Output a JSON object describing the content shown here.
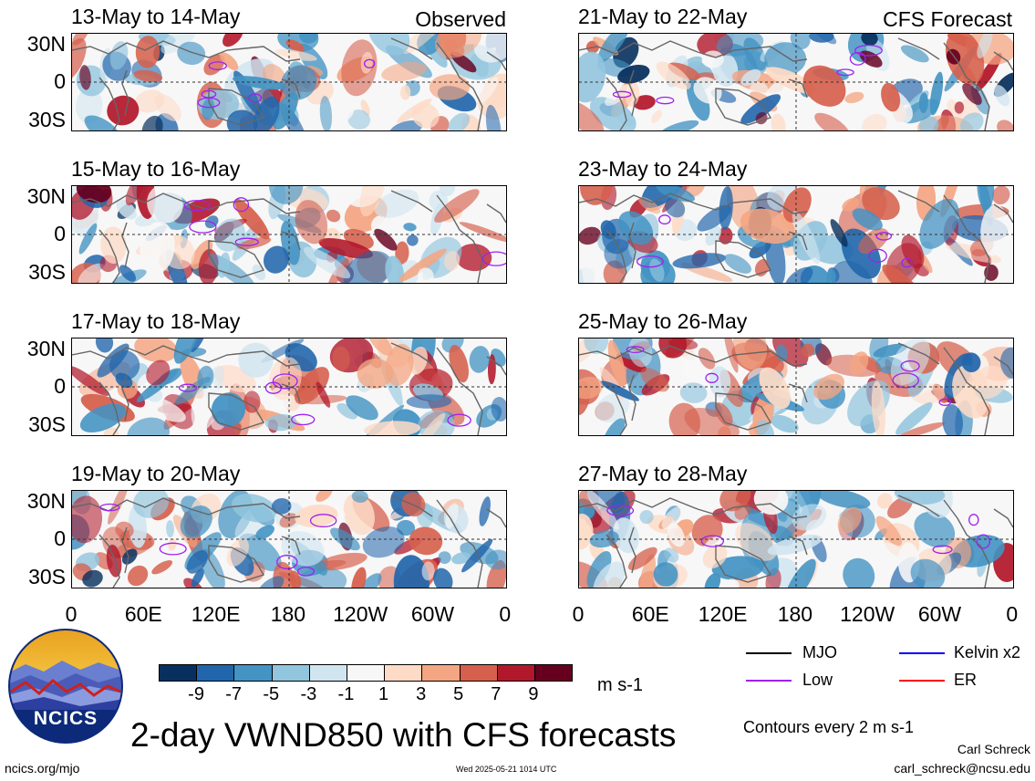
{
  "headers": {
    "left": "Observed",
    "right": "CFS Forecast"
  },
  "panels_left": [
    {
      "title": "13-May to 14-May"
    },
    {
      "title": "15-May to 16-May"
    },
    {
      "title": "17-May to 18-May"
    },
    {
      "title": "19-May to 20-May"
    }
  ],
  "panels_right": [
    {
      "title": "21-May to 22-May"
    },
    {
      "title": "23-May to 24-May"
    },
    {
      "title": "25-May to 26-May"
    },
    {
      "title": "27-May to 28-May"
    }
  ],
  "lat_labels": [
    "30N",
    "0",
    "30S"
  ],
  "lon_labels": [
    "0",
    "60E",
    "120E",
    "180",
    "120W",
    "60W",
    "0"
  ],
  "colorbar": {
    "labels": [
      "-9",
      "-7",
      "-5",
      "-3",
      "-1",
      "1",
      "3",
      "5",
      "7",
      "9"
    ],
    "colors": [
      "#08305e",
      "#2166ac",
      "#4393c3",
      "#92c5de",
      "#d1e5f0",
      "#f7f7f7",
      "#fddbc7",
      "#f4a582",
      "#d6604d",
      "#b2182b",
      "#67001f"
    ],
    "units": "m s-1"
  },
  "legend": {
    "items": [
      {
        "label": "MJO",
        "color": "#000000"
      },
      {
        "label": "Kelvin x2",
        "color": "#0000ff"
      },
      {
        "label": "Low",
        "color": "#a020f0"
      },
      {
        "label": "ER",
        "color": "#ff0000"
      }
    ],
    "contour_note": "Contours every 2 m s-1"
  },
  "logo": {
    "text": "NCICS"
  },
  "main_title": "2-day VWND850 with CFS forecasts",
  "footer": {
    "url": "ncics.org/mjo",
    "timestamp": "Wed 2025-05-21 1014 UTC",
    "author": "Carl Schreck",
    "email": "carl_schreck@ncsu.edu"
  },
  "chart_data": {
    "type": "heatmap",
    "variable": "VWND850",
    "units": "m s-1",
    "x_ticks": [
      "0",
      "60E",
      "120E",
      "180",
      "120W",
      "60W",
      "0"
    ],
    "y_ticks": [
      "30N",
      "0",
      "30S"
    ],
    "color_levels": [
      -9,
      -7,
      -5,
      -3,
      -1,
      1,
      3,
      5,
      7,
      9
    ],
    "panels": [
      {
        "title": "13-May to 14-May",
        "source": "Observed"
      },
      {
        "title": "15-May to 16-May",
        "source": "Observed"
      },
      {
        "title": "17-May to 18-May",
        "source": "Observed"
      },
      {
        "title": "19-May to 20-May",
        "source": "Observed"
      },
      {
        "title": "21-May to 22-May",
        "source": "CFS Forecast"
      },
      {
        "title": "23-May to 24-May",
        "source": "CFS Forecast"
      },
      {
        "title": "25-May to 26-May",
        "source": "CFS Forecast"
      },
      {
        "title": "27-May to 28-May",
        "source": "CFS Forecast"
      }
    ]
  }
}
